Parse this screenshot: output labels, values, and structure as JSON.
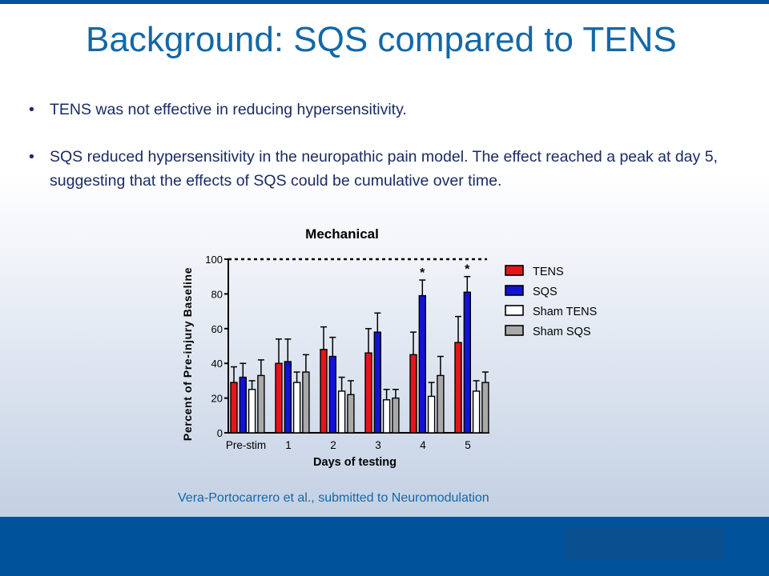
{
  "slide": {
    "title": "Background: SQS compared to TENS",
    "bullets": [
      "TENS was not effective in reducing hypersensitivity.",
      "SQS reduced hypersensitivity in the neuropathic pain model. The effect reached a peak at day 5, suggesting that the effects of SQS could be cumulative over time."
    ],
    "bullet_marker": "•",
    "citation": "Vera-Portocarrero et al., submitted to Neuromodulation",
    "colors": {
      "bar_top": "#00529b",
      "title": "#1268a8",
      "bullet_text": "#1b2b63"
    }
  },
  "chart_data": {
    "type": "bar",
    "title": "Mechanical",
    "xlabel": "Days of testing",
    "ylabel": "Percent of Pre-injury Baseline",
    "categories": [
      "Pre-stim",
      "1",
      "2",
      "3",
      "4",
      "5"
    ],
    "ylim": [
      0,
      100
    ],
    "yticks": [
      0,
      20,
      40,
      60,
      80,
      100
    ],
    "reference_line": 100,
    "grid": false,
    "legend_position": "right",
    "significance_marker": "*",
    "series": [
      {
        "name": "TENS",
        "color": "#e8141b",
        "values": [
          29,
          40,
          48,
          46,
          45,
          52
        ],
        "errors": [
          9,
          14,
          13,
          14,
          13,
          15
        ],
        "significant": [
          false,
          false,
          false,
          false,
          false,
          false
        ]
      },
      {
        "name": "SQS",
        "color": "#1212d6",
        "values": [
          32,
          41,
          44,
          58,
          79,
          81
        ],
        "errors": [
          8,
          13,
          11,
          11,
          9,
          9
        ],
        "significant": [
          false,
          false,
          false,
          false,
          true,
          true
        ]
      },
      {
        "name": "Sham TENS",
        "color": "#ffffff",
        "values": [
          25,
          29,
          24,
          19,
          21,
          24
        ],
        "errors": [
          5,
          6,
          8,
          6,
          8,
          6
        ],
        "significant": [
          false,
          false,
          false,
          false,
          false,
          false
        ]
      },
      {
        "name": "Sham SQS",
        "color": "#a9a9a9",
        "values": [
          33,
          35,
          22,
          20,
          33,
          29
        ],
        "errors": [
          9,
          10,
          8,
          5,
          11,
          6
        ],
        "significant": [
          false,
          false,
          false,
          false,
          false,
          false
        ]
      }
    ]
  }
}
